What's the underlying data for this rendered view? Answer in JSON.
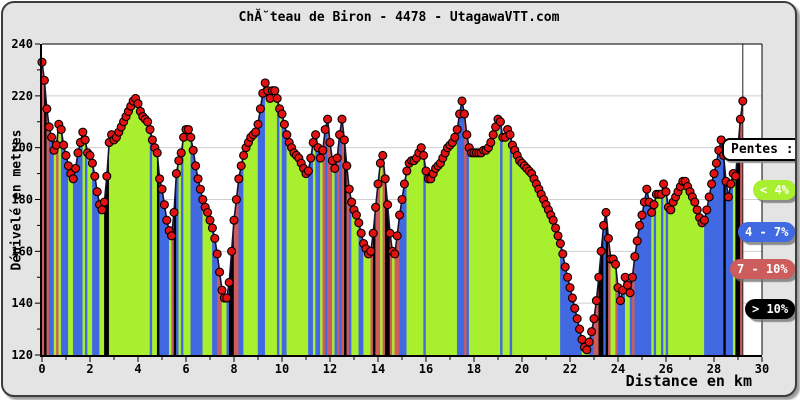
{
  "title": "ChĂ˘teau de Biron - 4478 - UtagawaVTT.com",
  "legend": {
    "title": "Pentes :"
  },
  "colors": {
    "card_background": "#e4e4e4",
    "plot_background": "#ffffff",
    "gridline": "#cfcfcf",
    "axis": "#000000",
    "profile_line": "#141432",
    "marker_fill": "#e31212",
    "marker_outline": "#000000"
  },
  "chart_data": {
    "type": "area",
    "title": "ChĂ˘teau de Biron - 4478 - UtagawaVTT.com",
    "xlabel": "Distance en km",
    "ylabel": "Dénivelé en metres",
    "xlim": [
      0,
      30
    ],
    "ylim": [
      120,
      240
    ],
    "x_ticks": [
      0,
      2,
      4,
      6,
      8,
      10,
      12,
      14,
      16,
      18,
      20,
      22,
      24,
      26,
      28,
      30
    ],
    "x_minor_ticks": [
      1,
      3,
      5,
      7,
      9,
      11,
      13,
      15,
      17,
      19,
      21,
      23,
      25,
      27,
      29
    ],
    "y_ticks": [
      120,
      140,
      160,
      180,
      200,
      220,
      240
    ],
    "y_minor_ticks": [
      130,
      150,
      170,
      190,
      210,
      230
    ],
    "grid": true,
    "legend_title": "Pentes :",
    "legend_position": "right",
    "slope_categories": [
      {
        "label": "< 4%",
        "max_percent": 4,
        "color": "#a8f02f"
      },
      {
        "label": "4 - 7%",
        "max_percent": 7,
        "color": "#4169e1"
      },
      {
        "label": "7 - 10%",
        "max_percent": 10,
        "color": "#cd5c5c"
      },
      {
        "label": "> 10%",
        "max_percent": null,
        "color": "#000000"
      }
    ],
    "x_start": 0,
    "x_step": 0.1,
    "elevations": [
      233,
      226,
      215,
      208,
      204,
      199,
      201,
      209,
      207,
      201,
      197,
      193,
      190,
      188,
      192,
      198,
      202,
      206,
      203,
      198,
      197,
      194,
      189,
      183,
      178,
      176,
      179,
      189,
      202,
      205,
      203,
      204,
      206,
      208,
      210,
      212,
      214,
      216,
      218,
      219,
      217,
      214,
      212,
      211,
      210,
      207,
      203,
      200,
      198,
      188,
      184,
      178,
      172,
      168,
      166,
      175,
      190,
      195,
      198,
      204,
      207,
      207,
      204,
      199,
      193,
      188,
      184,
      180,
      177,
      175,
      172,
      169,
      165,
      159,
      152,
      145,
      142,
      142,
      148,
      160,
      172,
      180,
      188,
      193,
      197,
      200,
      202,
      204,
      205,
      206,
      209,
      215,
      221,
      225,
      222,
      219,
      222,
      222,
      219,
      215,
      213,
      209,
      205,
      202,
      200,
      198,
      197,
      196,
      194,
      192,
      190,
      191,
      196,
      202,
      205,
      200,
      196,
      199,
      207,
      211,
      202,
      195,
      192,
      196,
      205,
      211,
      203,
      193,
      184,
      179,
      176,
      174,
      171,
      167,
      163,
      161,
      159,
      160,
      167,
      177,
      186,
      194,
      197,
      188,
      178,
      167,
      160,
      159,
      166,
      174,
      180,
      186,
      191,
      194,
      195,
      195,
      196,
      198,
      200,
      197,
      191,
      188,
      188,
      190,
      192,
      193,
      194,
      196,
      198,
      200,
      201,
      202,
      204,
      207,
      213,
      218,
      213,
      205,
      200,
      198,
      198,
      198,
      198,
      198,
      199,
      199,
      200,
      202,
      205,
      208,
      211,
      210,
      204,
      204,
      207,
      205,
      201,
      199,
      197,
      195,
      194,
      193,
      192,
      191,
      190,
      188,
      186,
      184,
      182,
      180,
      178,
      176,
      174,
      172,
      169,
      166,
      163,
      159,
      154,
      150,
      146,
      142,
      138,
      134,
      130,
      126,
      123,
      122,
      125,
      129,
      134,
      141,
      150,
      160,
      170,
      175,
      165,
      157,
      157,
      155,
      146,
      141,
      145,
      150,
      147,
      144,
      150,
      158,
      164,
      170,
      174,
      179,
      184,
      179,
      175,
      178,
      182,
      182,
      182,
      186,
      183,
      177,
      176,
      179,
      181,
      183,
      185,
      187,
      187,
      185,
      183,
      181,
      179,
      176,
      173,
      171,
      172,
      176,
      181,
      186,
      190,
      194,
      199,
      203,
      197,
      187,
      181,
      186,
      190,
      189,
      200,
      211,
      218
    ]
  }
}
